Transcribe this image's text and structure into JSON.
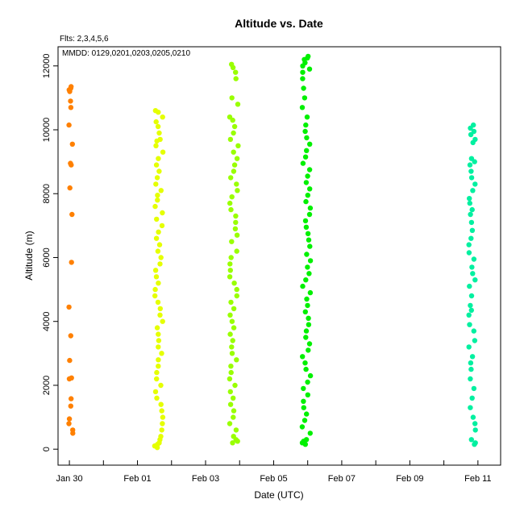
{
  "chart_data": {
    "type": "scatter",
    "title": "Altitude  vs. Date",
    "annotations": [
      "Flts: 2,3,4,5,6",
      "MMDD: 0129,0201,0203,0205,0210"
    ],
    "xlabel": "Date (UTC)",
    "ylabel": "Altitude (m)",
    "x_tick_labels": [
      "Jan 30",
      "Feb 01",
      "Feb 03",
      "Feb 05",
      "Feb 07",
      "Feb 09",
      "Feb 11"
    ],
    "y_ticks": [
      0,
      2000,
      4000,
      6000,
      8000,
      10000,
      12000
    ],
    "xlim": [
      "2012-01-29T16:00",
      "2012-02-11T16:00"
    ],
    "ylim": [
      -500,
      12600
    ],
    "grid": false,
    "legend": "none",
    "series": [
      {
        "color": "#ff8000",
        "x_center": "2012-01-30T01:00",
        "x_spread_hours": 3,
        "y": [
          11300,
          11350,
          11250,
          11200,
          10900,
          10700,
          10150,
          9550,
          8900,
          8950,
          8180,
          7350,
          5850,
          4450,
          3550,
          2780,
          2230,
          2200,
          1580,
          1350,
          950,
          800,
          600,
          500
        ]
      },
      {
        "color": "#e5ff00",
        "x_center": "2012-02-01T15:00",
        "x_spread_hours": 6,
        "y": [
          10600,
          10550,
          10400,
          10250,
          10100,
          9900,
          9700,
          9650,
          9500,
          9300,
          9100,
          8900,
          8700,
          8500,
          8300,
          8100,
          7950,
          7800,
          7600,
          7400,
          7200,
          7000,
          6800,
          6600,
          6400,
          6200,
          6000,
          5800,
          5600,
          5400,
          5200,
          5000,
          4800,
          4600,
          4400,
          4200,
          4000,
          3800,
          3600,
          3400,
          3200,
          3000,
          2800,
          2600,
          2400,
          2200,
          2000,
          1800,
          1600,
          1400,
          1200,
          1000,
          800,
          600,
          400,
          300,
          200,
          100,
          50,
          150
        ]
      },
      {
        "color": "#99ff00",
        "x_center": "2012-02-03T20:00",
        "x_spread_hours": 6,
        "y": [
          12050,
          11950,
          11800,
          11600,
          11000,
          10800,
          10400,
          10300,
          10100,
          9900,
          9700,
          9500,
          9300,
          9100,
          8900,
          8700,
          8500,
          8300,
          8100,
          7900,
          7700,
          7500,
          7300,
          7100,
          6900,
          6700,
          6500,
          6200,
          6000,
          5800,
          5600,
          5400,
          5200,
          5000,
          4800,
          4600,
          4400,
          4200,
          4000,
          3800,
          3600,
          3400,
          3200,
          3000,
          2800,
          2600,
          2400,
          2200,
          2000,
          1800,
          1600,
          1400,
          1200,
          1000,
          800,
          600,
          400,
          300,
          200,
          250
        ]
      },
      {
        "color": "#00f000",
        "x_center": "2012-02-05T23:00",
        "x_spread_hours": 6,
        "y": [
          12300,
          12250,
          12200,
          12100,
          12000,
          11900,
          11800,
          11600,
          11300,
          11000,
          10700,
          10400,
          10150,
          9950,
          9750,
          9550,
          9350,
          9150,
          8950,
          8750,
          8550,
          8350,
          8150,
          7950,
          7750,
          7550,
          7350,
          7150,
          6950,
          6750,
          6550,
          6350,
          6100,
          5900,
          5700,
          5500,
          5300,
          5100,
          4900,
          4700,
          4500,
          4300,
          4100,
          3900,
          3700,
          3500,
          3300,
          3100,
          2900,
          2700,
          2500,
          2300,
          2100,
          1900,
          1700,
          1500,
          1300,
          1100,
          900,
          700,
          500,
          300,
          200,
          150,
          250
        ]
      },
      {
        "color": "#00f0a0",
        "x_center": "2012-02-10T20:00",
        "x_spread_hours": 5,
        "y": [
          10150,
          10050,
          9950,
          9850,
          9700,
          9600,
          9100,
          9000,
          8900,
          8700,
          8500,
          8300,
          8100,
          7850,
          7700,
          7500,
          7350,
          7100,
          6850,
          6600,
          6400,
          6150,
          5950,
          5700,
          5500,
          5300,
          5100,
          4800,
          4500,
          4350,
          4200,
          3900,
          3700,
          3400,
          3200,
          2900,
          2700,
          2500,
          2200,
          1900,
          1600,
          1300,
          1000,
          800,
          600,
          300,
          200,
          150
        ]
      }
    ]
  }
}
